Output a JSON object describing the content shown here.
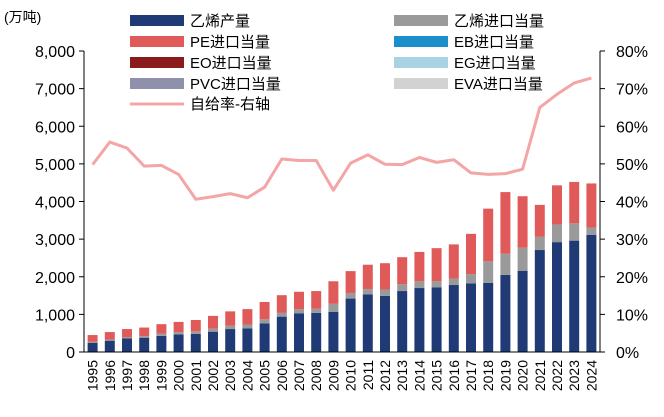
{
  "chart_data": {
    "type": "bar",
    "stacked": true,
    "unit_label": "(万吨)",
    "categories": [
      "1995",
      "1996",
      "1997",
      "1998",
      "1999",
      "2000",
      "2001",
      "2002",
      "2003",
      "2004",
      "2005",
      "2006",
      "2007",
      "2008",
      "2009",
      "2010",
      "2011",
      "2012",
      "2013",
      "2014",
      "2015",
      "2016",
      "2017",
      "2018",
      "2019",
      "2020",
      "2021",
      "2022",
      "2023",
      "2024"
    ],
    "y_left": {
      "min": 0,
      "max": 8000,
      "ticks": [
        "0",
        "1,000",
        "2,000",
        "3,000",
        "4,000",
        "5,000",
        "6,000",
        "7,000",
        "8,000"
      ]
    },
    "y_right": {
      "min": 0,
      "max": 80,
      "ticks": [
        "0%",
        "10%",
        "20%",
        "30%",
        "40%",
        "50%",
        "60%",
        "70%",
        "80%"
      ]
    },
    "series": [
      {
        "name": "乙烯产量",
        "color": "#1f3a74",
        "values": [
          240,
          300,
          360,
          380,
          430,
          470,
          480,
          540,
          610,
          630,
          760,
          940,
          1030,
          1040,
          1070,
          1420,
          1530,
          1490,
          1620,
          1700,
          1720,
          1780,
          1820,
          1840,
          2050,
          2160,
          2710,
          2920,
          2960,
          3110
        ]
      },
      {
        "name": "乙烯进口当量",
        "color": "#9a9a9a",
        "values": [
          30,
          30,
          30,
          40,
          60,
          60,
          70,
          80,
          90,
          100,
          110,
          110,
          110,
          110,
          210,
          150,
          140,
          170,
          180,
          180,
          160,
          170,
          250,
          570,
          560,
          610,
          350,
          470,
          460,
          200
        ]
      },
      {
        "name": "PE进口当量",
        "color": "#e05a5a",
        "values": [
          180,
          200,
          220,
          230,
          250,
          270,
          300,
          340,
          380,
          410,
          460,
          460,
          460,
          470,
          600,
          580,
          650,
          700,
          720,
          780,
          880,
          910,
          1070,
          1400,
          1640,
          1370,
          850,
          1040,
          1100,
          1170
        ]
      },
      {
        "name": "EB进口当量",
        "color": "#1a8fcc",
        "values": [
          0,
          0,
          0,
          0,
          0,
          0,
          0,
          0,
          0,
          0,
          0,
          0,
          0,
          0,
          0,
          0,
          0,
          0,
          0,
          0,
          0,
          0,
          0,
          0,
          0,
          0,
          0,
          0,
          0,
          0
        ]
      },
      {
        "name": "EO进口当量",
        "color": "#8b1a1a",
        "values": [
          0,
          0,
          0,
          0,
          0,
          0,
          0,
          0,
          0,
          0,
          0,
          0,
          0,
          0,
          0,
          0,
          0,
          0,
          0,
          0,
          0,
          0,
          0,
          0,
          0,
          0,
          0,
          0,
          0,
          0
        ]
      },
      {
        "name": "EG进口当量",
        "color": "#a9d3e3",
        "values": [
          0,
          0,
          0,
          0,
          0,
          0,
          0,
          0,
          0,
          0,
          0,
          0,
          0,
          0,
          0,
          0,
          0,
          0,
          0,
          0,
          0,
          0,
          0,
          0,
          0,
          0,
          0,
          0,
          0,
          0
        ]
      },
      {
        "name": "PVC进口当量",
        "color": "#8f91ac",
        "values": [
          0,
          0,
          0,
          0,
          0,
          0,
          0,
          0,
          0,
          0,
          0,
          0,
          0,
          0,
          0,
          0,
          0,
          0,
          0,
          0,
          0,
          0,
          0,
          0,
          0,
          0,
          0,
          0,
          0,
          0
        ]
      },
      {
        "name": "EVA进口当量",
        "color": "#d2d2d2",
        "values": [
          0,
          0,
          0,
          0,
          0,
          0,
          0,
          0,
          0,
          0,
          0,
          0,
          0,
          0,
          0,
          0,
          0,
          0,
          0,
          0,
          0,
          0,
          0,
          0,
          0,
          0,
          0,
          0,
          0,
          0
        ]
      }
    ],
    "line": {
      "name": "自给率-右轴",
      "color": "#f4a5a5",
      "axis": "right",
      "values": [
        49.8,
        55.8,
        54.2,
        49.4,
        49.6,
        47.2,
        40.6,
        41.3,
        42.1,
        41.0,
        43.8,
        51.3,
        50.9,
        50.9,
        43.0,
        50.2,
        52.4,
        49.9,
        49.8,
        51.7,
        50.4,
        51.1,
        47.6,
        47.2,
        47.4,
        48.6,
        65.0,
        68.5,
        71.5,
        72.8
      ]
    },
    "legend": {
      "placement": "top",
      "columns": 2
    },
    "grid": false
  }
}
